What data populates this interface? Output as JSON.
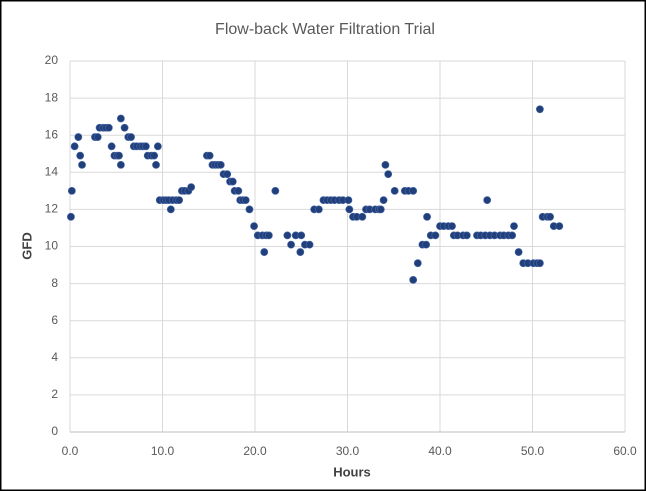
{
  "chart_data": {
    "type": "scatter",
    "title": "Flow-back Water Filtration Trial",
    "x_label": "Hours",
    "y_label": "GFD",
    "color": "#213f7a",
    "grid": true,
    "xlim": [
      0,
      60
    ],
    "ylim": [
      0,
      20
    ],
    "xticks": [
      {
        "value": 0,
        "label": "0.0"
      },
      {
        "value": 10,
        "label": "10.0"
      },
      {
        "value": 20,
        "label": "20.0"
      },
      {
        "value": 30,
        "label": "30.0"
      },
      {
        "value": 40,
        "label": "40.0"
      },
      {
        "value": 50,
        "label": "50.0"
      },
      {
        "value": 60,
        "label": "60.0"
      }
    ],
    "yticks": [
      0,
      2,
      4,
      6,
      8,
      10,
      12,
      14,
      16,
      18,
      20
    ],
    "x": [
      0.1,
      0.2,
      0.5,
      0.9,
      1.1,
      1.3,
      2.7,
      3.0,
      3.2,
      3.6,
      3.9,
      4.2,
      4.5,
      4.8,
      5.1,
      5.3,
      5.5,
      5.5,
      5.9,
      6.3,
      6.6,
      6.9,
      7.2,
      7.6,
      7.9,
      8.2,
      8.4,
      8.8,
      9.1,
      9.3,
      9.5,
      9.7,
      10.1,
      10.4,
      10.7,
      10.9,
      11.1,
      11.5,
      11.8,
      12.1,
      12.4,
      12.8,
      13.1,
      14.8,
      15.1,
      15.4,
      15.7,
      16.0,
      16.3,
      16.6,
      17.0,
      17.3,
      17.6,
      17.8,
      18.2,
      18.4,
      18.7,
      19.0,
      19.4,
      19.9,
      20.3,
      20.8,
      21.0,
      21.2,
      21.5,
      22.2,
      23.5,
      23.9,
      24.4,
      24.9,
      25.0,
      25.4,
      25.9,
      26.4,
      26.9,
      27.4,
      27.8,
      28.2,
      28.6,
      29.1,
      29.5,
      30.1,
      30.2,
      30.6,
      31.0,
      31.6,
      32.0,
      32.4,
      33.0,
      33.4,
      33.6,
      33.9,
      34.1,
      34.4,
      35.1,
      36.2,
      36.6,
      37.1,
      37.1,
      37.6,
      38.1,
      38.5,
      38.6,
      39.0,
      39.5,
      40.0,
      40.4,
      40.9,
      41.3,
      41.5,
      41.9,
      42.5,
      42.9,
      44.0,
      44.4,
      44.9,
      45.1,
      45.4,
      45.9,
      46.5,
      46.9,
      47.4,
      47.8,
      48.0,
      48.5,
      49.0,
      49.5,
      50.1,
      50.5,
      50.8,
      50.8,
      51.1,
      51.6,
      51.9,
      52.3,
      52.9
    ],
    "values": [
      11.6,
      13.0,
      15.4,
      15.9,
      14.9,
      14.4,
      15.9,
      15.9,
      16.4,
      16.4,
      16.4,
      16.4,
      15.4,
      14.9,
      14.9,
      14.9,
      16.9,
      14.4,
      16.4,
      15.9,
      15.9,
      15.4,
      15.4,
      15.4,
      15.4,
      15.4,
      14.9,
      14.9,
      14.9,
      14.4,
      15.4,
      12.5,
      12.5,
      12.5,
      12.5,
      12.0,
      12.5,
      12.5,
      12.5,
      13.0,
      13.0,
      13.0,
      13.2,
      14.9,
      14.9,
      14.4,
      14.4,
      14.4,
      14.4,
      13.9,
      13.9,
      13.5,
      13.5,
      13.0,
      13.0,
      12.5,
      12.5,
      12.5,
      12.0,
      11.1,
      10.6,
      10.6,
      9.7,
      10.6,
      10.6,
      13.0,
      10.6,
      10.1,
      10.6,
      9.7,
      10.6,
      10.1,
      10.1,
      12.0,
      12.0,
      12.5,
      12.5,
      12.5,
      12.5,
      12.5,
      12.5,
      12.5,
      12.0,
      11.6,
      11.6,
      11.6,
      12.0,
      12.0,
      12.0,
      12.0,
      12.0,
      12.5,
      14.4,
      13.9,
      13.0,
      13.0,
      13.0,
      13.0,
      8.2,
      9.1,
      10.1,
      10.1,
      11.6,
      10.6,
      10.6,
      11.1,
      11.1,
      11.1,
      11.1,
      10.6,
      10.6,
      10.6,
      10.6,
      10.6,
      10.6,
      10.6,
      12.5,
      10.6,
      10.6,
      10.6,
      10.6,
      10.6,
      10.6,
      11.1,
      9.7,
      9.1,
      9.1,
      9.1,
      9.1,
      17.4,
      9.1,
      11.6,
      11.6,
      11.6,
      11.1,
      11.1
    ]
  }
}
